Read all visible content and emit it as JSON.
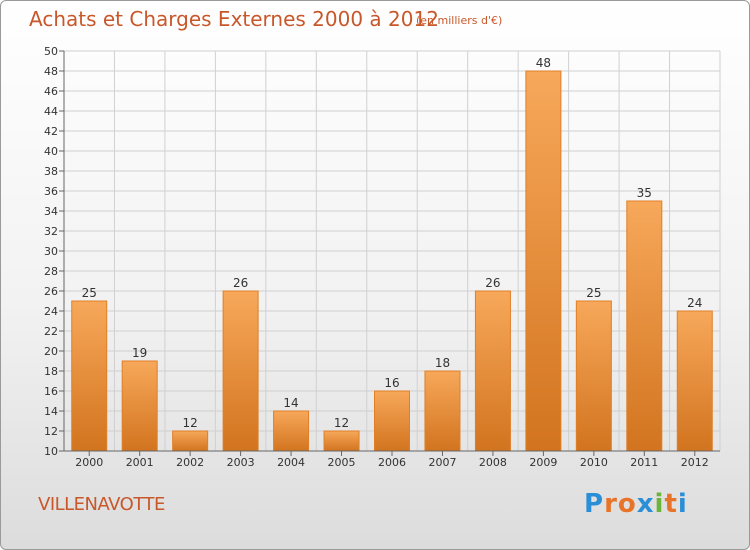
{
  "header": {
    "title": "Achats et Charges Externes 2000 à 2012",
    "subtitle": "(en milliers d'€)"
  },
  "footer": {
    "commune": "VILLENAVOTTE",
    "logo_letters": [
      "P",
      "r",
      "o",
      "x",
      "i",
      "t",
      "i"
    ],
    "logo_colors": [
      "#2a8fd6",
      "#e8742a",
      "#e8742a",
      "#2a8fd6",
      "#6ab43a",
      "#e8742a",
      "#2a8fd6"
    ]
  },
  "chart_data": {
    "type": "bar",
    "title": "Achats et Charges Externes 2000 à 2012",
    "subtitle": "(en milliers d'€)",
    "xlabel": "",
    "ylabel": "",
    "categories": [
      "2000",
      "2001",
      "2002",
      "2003",
      "2004",
      "2005",
      "2006",
      "2007",
      "2008",
      "2009",
      "2010",
      "2011",
      "2012"
    ],
    "values": [
      25,
      19,
      12,
      26,
      14,
      12,
      16,
      18,
      26,
      48,
      25,
      35,
      24
    ],
    "ylim": [
      10,
      50
    ],
    "ytick_step": 2,
    "grid": true,
    "bar_color_light": "#f7a85a",
    "bar_color_dark": "#d2741f",
    "bar_edge_color": "#e07f28"
  }
}
